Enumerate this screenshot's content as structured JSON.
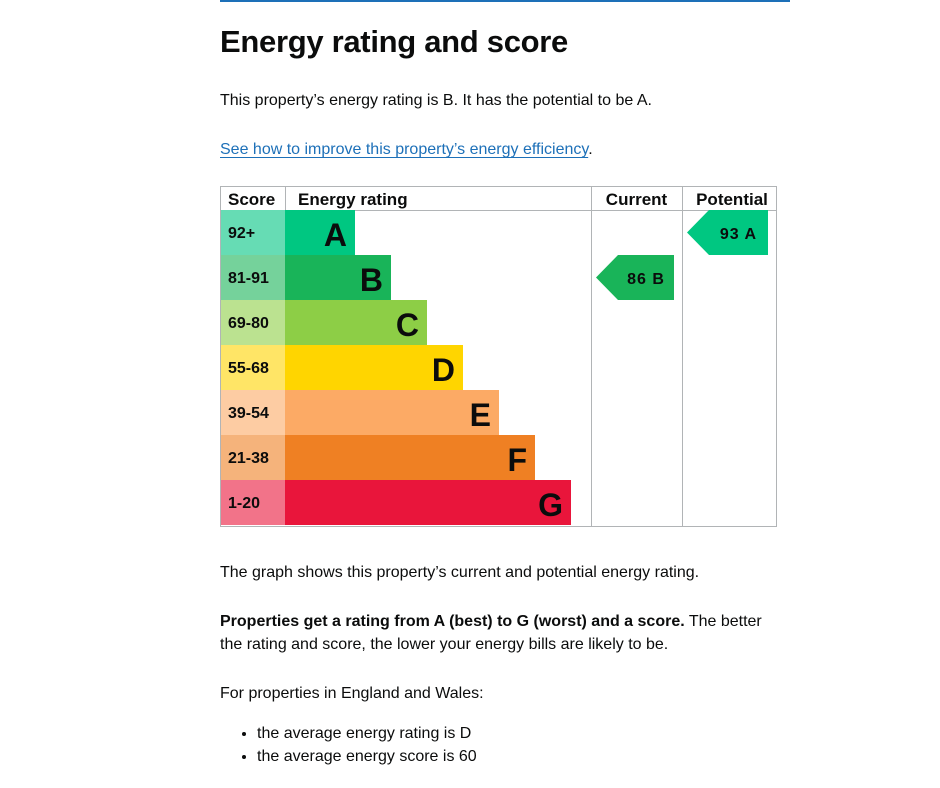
{
  "heading": "Energy rating and score",
  "intro": "This property’s energy rating is B. It has the potential to be A.",
  "improve_link": "See how to improve this property’s energy efficiency",
  "improve_link_suffix": ".",
  "graph_caption": "The graph shows this property’s current and potential energy rating.",
  "ratings_bold": "Properties get a rating from A (best) to G (worst) and a score.",
  "ratings_rest": " The better the rating and score, the lower your energy bills are likely to be.",
  "england_wales": "For properties in England and Wales:",
  "averages": [
    "the average energy rating is D",
    "the average energy score is 60"
  ],
  "chart_data": {
    "type": "bar",
    "headers": {
      "score": "Score",
      "rating": "Energy rating",
      "current": "Current",
      "potential": "Potential"
    },
    "bands": [
      {
        "range": "92+",
        "letter": "A",
        "min": 92,
        "max": 100,
        "color": "#00c781",
        "score_bg": "#66dcb4"
      },
      {
        "range": "81-91",
        "letter": "B",
        "min": 81,
        "max": 91,
        "color": "#19b459",
        "score_bg": "#75d29b"
      },
      {
        "range": "69-80",
        "letter": "C",
        "min": 69,
        "max": 80,
        "color": "#8dce46",
        "score_bg": "#bbe290"
      },
      {
        "range": "55-68",
        "letter": "D",
        "min": 55,
        "max": 68,
        "color": "#ffd500",
        "score_bg": "#ffe566"
      },
      {
        "range": "39-54",
        "letter": "E",
        "min": 39,
        "max": 54,
        "color": "#fcaa65",
        "score_bg": "#fdcca3"
      },
      {
        "range": "21-38",
        "letter": "F",
        "min": 21,
        "max": 38,
        "color": "#ef8023",
        "score_bg": "#f5b37b"
      },
      {
        "range": "1-20",
        "letter": "G",
        "min": 1,
        "max": 20,
        "color": "#e9153b",
        "score_bg": "#f27389"
      }
    ],
    "current": {
      "score": 86,
      "letter": "B",
      "label": "86 B",
      "color": "#19b459"
    },
    "potential": {
      "score": 93,
      "letter": "A",
      "label": "93 A",
      "color": "#00c781"
    }
  }
}
